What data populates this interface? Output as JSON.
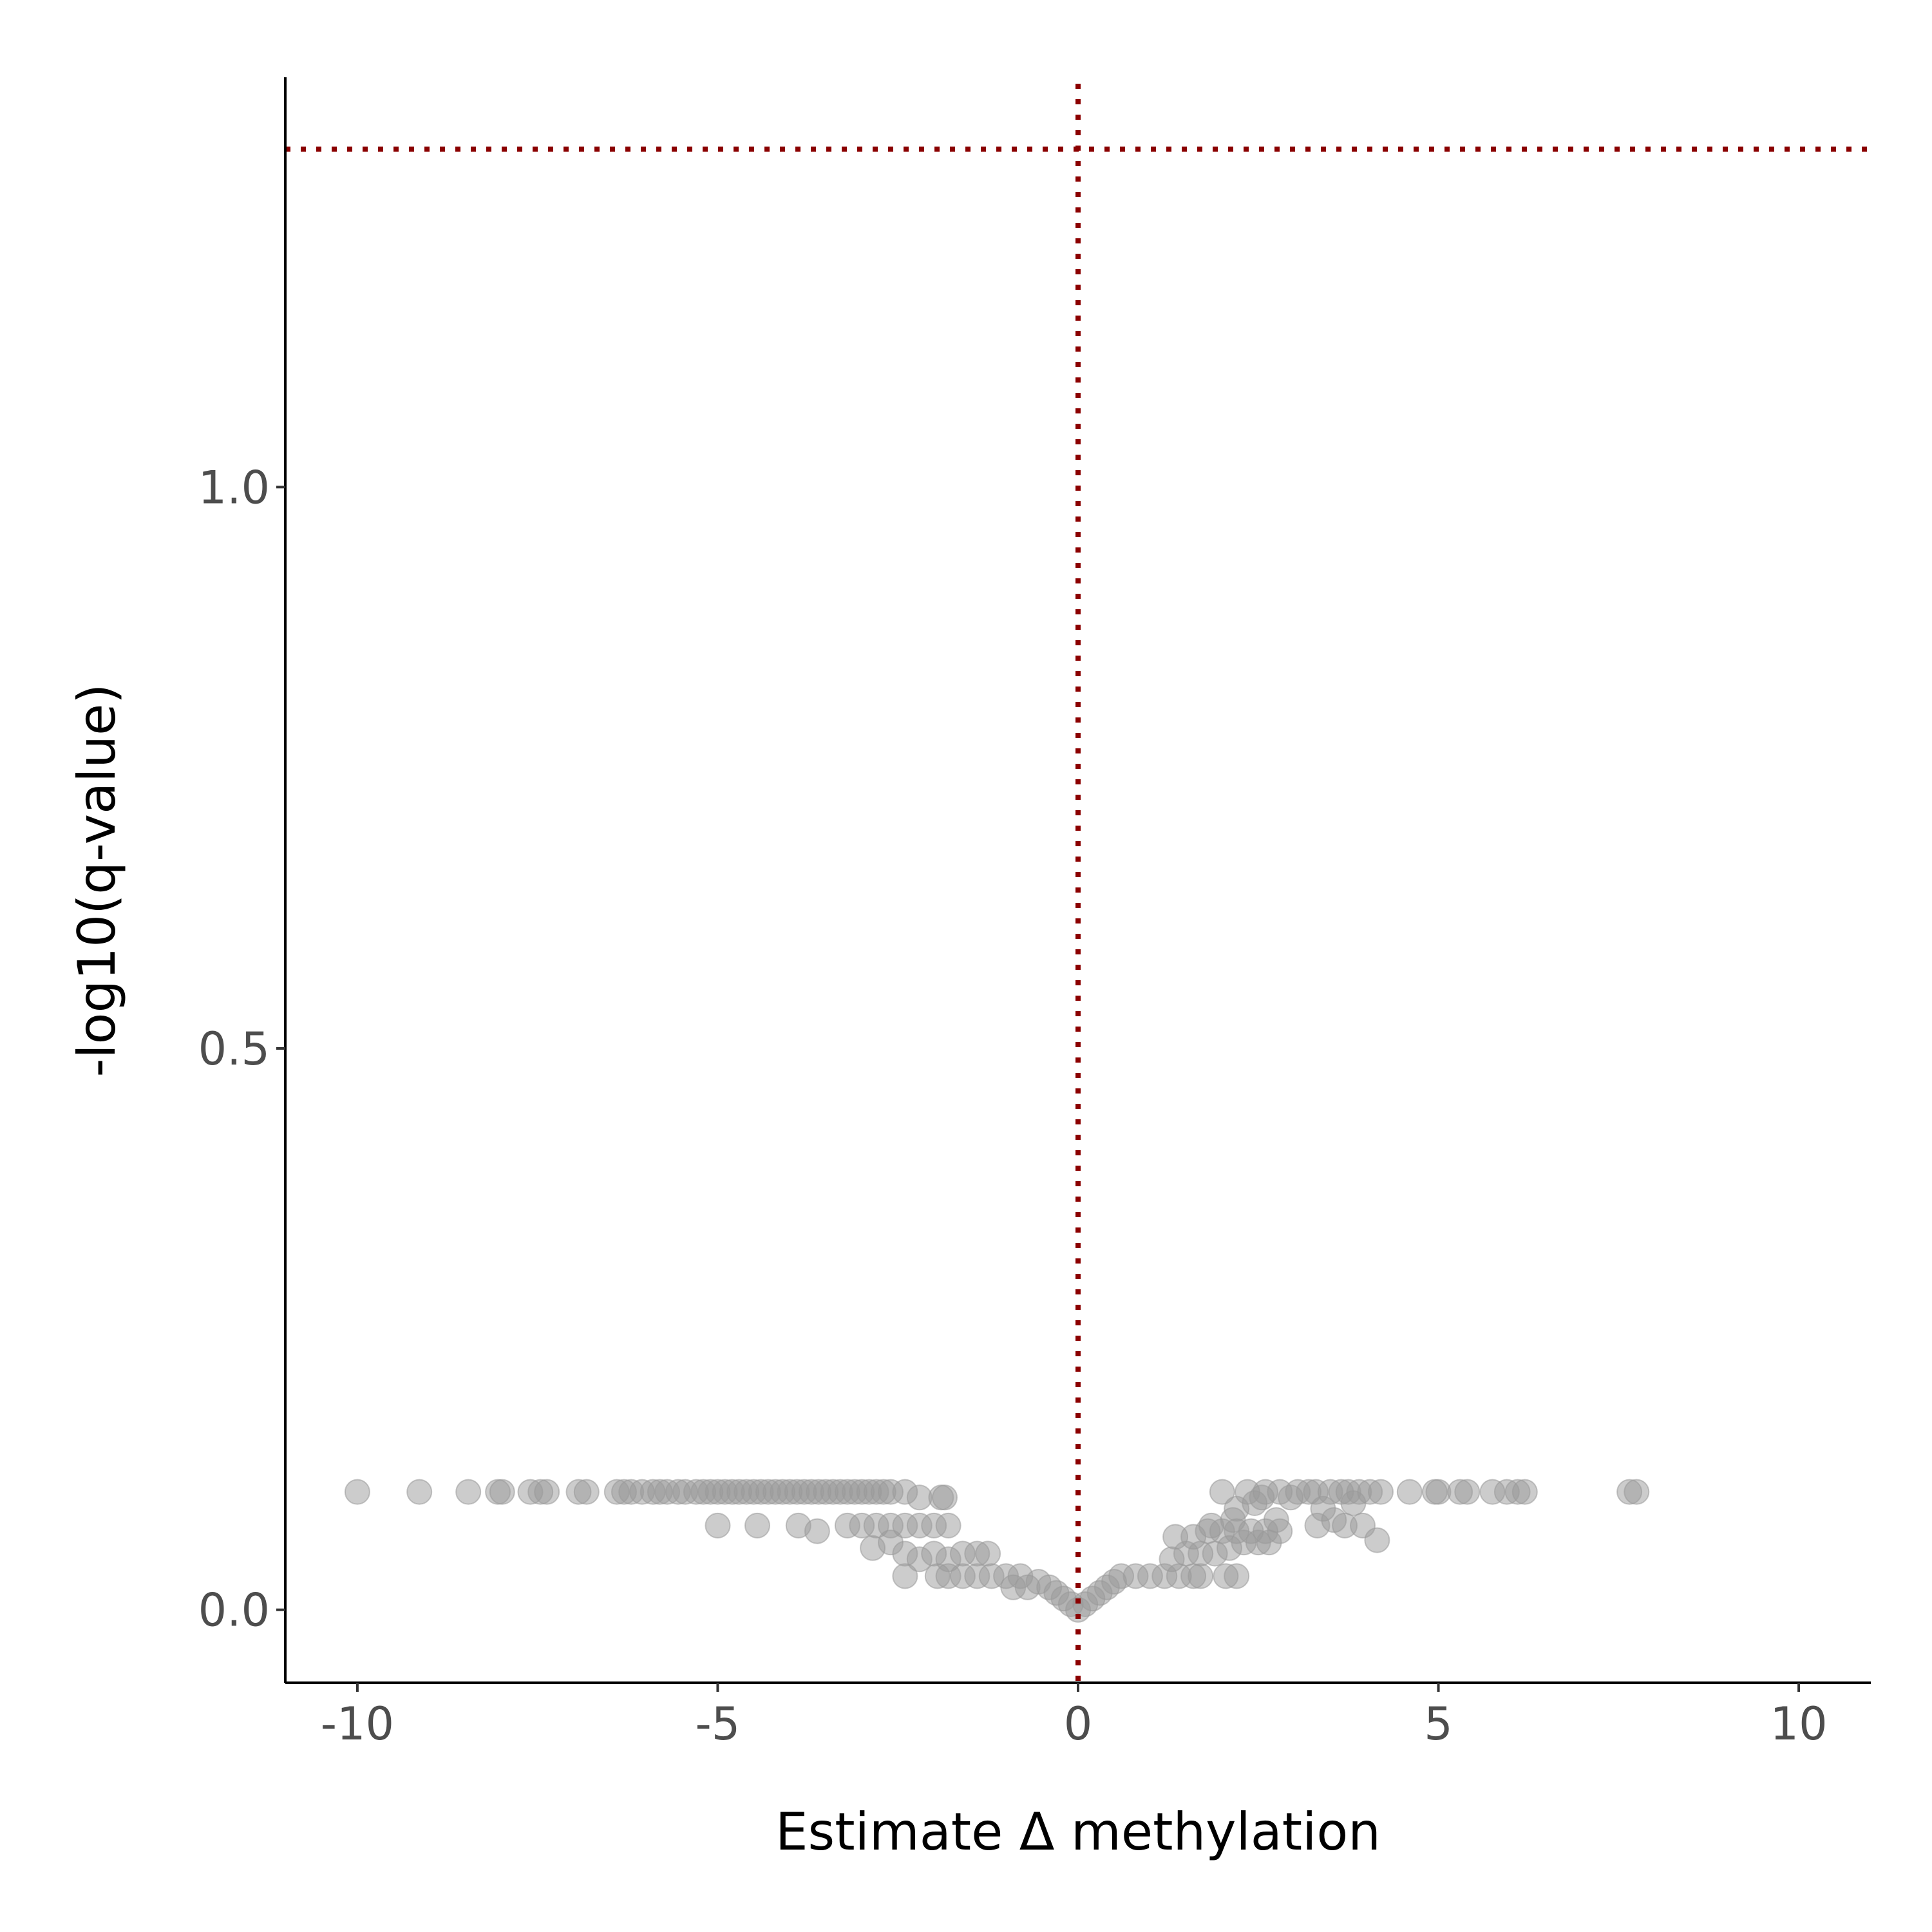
{
  "chart_data": {
    "type": "scatter",
    "title": "",
    "xlabel": "Estimate Δ methylation",
    "ylabel": "-log10(q-value)",
    "xlim": [
      -11,
      11
    ],
    "ylim": [
      -0.065,
      1.365
    ],
    "x_ticks": [
      {
        "value": -10,
        "label": "-10"
      },
      {
        "value": -5,
        "label": "-5"
      },
      {
        "value": 0,
        "label": "0"
      },
      {
        "value": 5,
        "label": "5"
      },
      {
        "value": 10,
        "label": "10"
      }
    ],
    "y_ticks": [
      {
        "value": 0.0,
        "label": "0.0"
      },
      {
        "value": 0.5,
        "label": "0.5"
      },
      {
        "value": 1.0,
        "label": "1.0"
      }
    ],
    "grid": false,
    "legend": "none",
    "reference_lines": [
      {
        "orientation": "horizontal",
        "value": 1.301,
        "style": "dotted",
        "color": "#8b0000"
      },
      {
        "orientation": "vertical",
        "value": 0,
        "style": "dotted",
        "color": "#8b0000"
      }
    ],
    "point_color": "#999999",
    "points": [
      {
        "x": -10.0,
        "y": 0.105
      },
      {
        "x": -9.14,
        "y": 0.105
      },
      {
        "x": -8.46,
        "y": 0.105
      },
      {
        "x": -8.05,
        "y": 0.105
      },
      {
        "x": -7.99,
        "y": 0.105
      },
      {
        "x": -7.6,
        "y": 0.105
      },
      {
        "x": -7.46,
        "y": 0.105
      },
      {
        "x": -7.37,
        "y": 0.105
      },
      {
        "x": -6.93,
        "y": 0.105
      },
      {
        "x": -6.82,
        "y": 0.105
      },
      {
        "x": -6.4,
        "y": 0.105
      },
      {
        "x": -6.3,
        "y": 0.105
      },
      {
        "x": -6.2,
        "y": 0.105
      },
      {
        "x": -6.05,
        "y": 0.105
      },
      {
        "x": -5.9,
        "y": 0.105
      },
      {
        "x": -5.8,
        "y": 0.105
      },
      {
        "x": -5.7,
        "y": 0.105
      },
      {
        "x": -5.55,
        "y": 0.105
      },
      {
        "x": -5.45,
        "y": 0.105
      },
      {
        "x": -5.3,
        "y": 0.105
      },
      {
        "x": -5.2,
        "y": 0.105
      },
      {
        "x": -5.1,
        "y": 0.105
      },
      {
        "x": -5.0,
        "y": 0.105
      },
      {
        "x": -4.9,
        "y": 0.105
      },
      {
        "x": -4.8,
        "y": 0.105
      },
      {
        "x": -4.7,
        "y": 0.105
      },
      {
        "x": -4.6,
        "y": 0.105
      },
      {
        "x": -4.5,
        "y": 0.105
      },
      {
        "x": -4.4,
        "y": 0.105
      },
      {
        "x": -4.3,
        "y": 0.105
      },
      {
        "x": -4.2,
        "y": 0.105
      },
      {
        "x": -4.1,
        "y": 0.105
      },
      {
        "x": -4.0,
        "y": 0.105
      },
      {
        "x": -3.9,
        "y": 0.105
      },
      {
        "x": -3.8,
        "y": 0.105
      },
      {
        "x": -3.7,
        "y": 0.105
      },
      {
        "x": -3.6,
        "y": 0.105
      },
      {
        "x": -3.5,
        "y": 0.105
      },
      {
        "x": -3.4,
        "y": 0.105
      },
      {
        "x": -3.3,
        "y": 0.105
      },
      {
        "x": -3.2,
        "y": 0.105
      },
      {
        "x": -3.1,
        "y": 0.105
      },
      {
        "x": -3.0,
        "y": 0.105
      },
      {
        "x": -2.9,
        "y": 0.105
      },
      {
        "x": -2.8,
        "y": 0.105
      },
      {
        "x": -2.7,
        "y": 0.105
      },
      {
        "x": -2.6,
        "y": 0.105
      },
      {
        "x": -2.4,
        "y": 0.105
      },
      {
        "x": -2.2,
        "y": 0.1
      },
      {
        "x": -1.9,
        "y": 0.1
      },
      {
        "x": -1.85,
        "y": 0.1
      },
      {
        "x": -5.0,
        "y": 0.075
      },
      {
        "x": -4.45,
        "y": 0.075
      },
      {
        "x": -3.88,
        "y": 0.075
      },
      {
        "x": -3.62,
        "y": 0.07
      },
      {
        "x": -3.2,
        "y": 0.075
      },
      {
        "x": -3.0,
        "y": 0.075
      },
      {
        "x": -2.8,
        "y": 0.075
      },
      {
        "x": -2.6,
        "y": 0.075
      },
      {
        "x": -2.4,
        "y": 0.075
      },
      {
        "x": -2.2,
        "y": 0.075
      },
      {
        "x": -2.0,
        "y": 0.075
      },
      {
        "x": -1.8,
        "y": 0.075
      },
      {
        "x": -2.85,
        "y": 0.055
      },
      {
        "x": -2.6,
        "y": 0.06
      },
      {
        "x": -2.4,
        "y": 0.05
      },
      {
        "x": -2.2,
        "y": 0.045
      },
      {
        "x": -2.0,
        "y": 0.05
      },
      {
        "x": -1.8,
        "y": 0.045
      },
      {
        "x": -1.6,
        "y": 0.05
      },
      {
        "x": -1.4,
        "y": 0.05
      },
      {
        "x": -1.25,
        "y": 0.05
      },
      {
        "x": -2.4,
        "y": 0.03
      },
      {
        "x": -1.95,
        "y": 0.03
      },
      {
        "x": -1.8,
        "y": 0.03
      },
      {
        "x": -1.6,
        "y": 0.03
      },
      {
        "x": -1.4,
        "y": 0.03
      },
      {
        "x": -1.2,
        "y": 0.03
      },
      {
        "x": -1.0,
        "y": 0.03
      },
      {
        "x": -0.8,
        "y": 0.03
      },
      {
        "x": -0.9,
        "y": 0.02
      },
      {
        "x": -0.7,
        "y": 0.02
      },
      {
        "x": -0.55,
        "y": 0.025
      },
      {
        "x": -0.4,
        "y": 0.02
      },
      {
        "x": -0.3,
        "y": 0.015
      },
      {
        "x": -0.2,
        "y": 0.01
      },
      {
        "x": -0.1,
        "y": 0.005
      },
      {
        "x": 0.0,
        "y": 0.0
      },
      {
        "x": 0.1,
        "y": 0.005
      },
      {
        "x": 0.2,
        "y": 0.01
      },
      {
        "x": 0.3,
        "y": 0.015
      },
      {
        "x": 0.4,
        "y": 0.02
      },
      {
        "x": 0.5,
        "y": 0.025
      },
      {
        "x": 0.6,
        "y": 0.03
      },
      {
        "x": 0.8,
        "y": 0.03
      },
      {
        "x": 1.0,
        "y": 0.03
      },
      {
        "x": 1.2,
        "y": 0.03
      },
      {
        "x": 1.4,
        "y": 0.03
      },
      {
        "x": 1.6,
        "y": 0.03
      },
      {
        "x": 1.7,
        "y": 0.03
      },
      {
        "x": 2.05,
        "y": 0.03
      },
      {
        "x": 2.2,
        "y": 0.03
      },
      {
        "x": 1.3,
        "y": 0.045
      },
      {
        "x": 1.5,
        "y": 0.05
      },
      {
        "x": 1.7,
        "y": 0.05
      },
      {
        "x": 1.9,
        "y": 0.05
      },
      {
        "x": 2.1,
        "y": 0.055
      },
      {
        "x": 2.3,
        "y": 0.06
      },
      {
        "x": 2.5,
        "y": 0.06
      },
      {
        "x": 2.65,
        "y": 0.06
      },
      {
        "x": 1.35,
        "y": 0.065
      },
      {
        "x": 1.6,
        "y": 0.065
      },
      {
        "x": 1.8,
        "y": 0.07
      },
      {
        "x": 2.0,
        "y": 0.07
      },
      {
        "x": 2.2,
        "y": 0.07
      },
      {
        "x": 2.4,
        "y": 0.07
      },
      {
        "x": 2.6,
        "y": 0.07
      },
      {
        "x": 2.8,
        "y": 0.07
      },
      {
        "x": 1.85,
        "y": 0.075
      },
      {
        "x": 2.15,
        "y": 0.08
      },
      {
        "x": 2.75,
        "y": 0.08
      },
      {
        "x": 3.32,
        "y": 0.075
      },
      {
        "x": 3.55,
        "y": 0.08
      },
      {
        "x": 3.7,
        "y": 0.075
      },
      {
        "x": 3.95,
        "y": 0.075
      },
      {
        "x": 4.15,
        "y": 0.062
      },
      {
        "x": 2.2,
        "y": 0.09
      },
      {
        "x": 2.45,
        "y": 0.095
      },
      {
        "x": 3.4,
        "y": 0.09
      },
      {
        "x": 3.82,
        "y": 0.095
      },
      {
        "x": 2.0,
        "y": 0.105
      },
      {
        "x": 2.35,
        "y": 0.105
      },
      {
        "x": 2.55,
        "y": 0.1
      },
      {
        "x": 2.6,
        "y": 0.105
      },
      {
        "x": 2.8,
        "y": 0.105
      },
      {
        "x": 2.95,
        "y": 0.1
      },
      {
        "x": 3.05,
        "y": 0.105
      },
      {
        "x": 3.2,
        "y": 0.105
      },
      {
        "x": 3.3,
        "y": 0.105
      },
      {
        "x": 3.5,
        "y": 0.105
      },
      {
        "x": 3.65,
        "y": 0.105
      },
      {
        "x": 3.75,
        "y": 0.105
      },
      {
        "x": 3.9,
        "y": 0.105
      },
      {
        "x": 4.05,
        "y": 0.105
      },
      {
        "x": 4.2,
        "y": 0.105
      },
      {
        "x": 4.6,
        "y": 0.105
      },
      {
        "x": 4.95,
        "y": 0.105
      },
      {
        "x": 5.0,
        "y": 0.105
      },
      {
        "x": 5.3,
        "y": 0.105
      },
      {
        "x": 5.4,
        "y": 0.105
      },
      {
        "x": 5.75,
        "y": 0.105
      },
      {
        "x": 5.95,
        "y": 0.105
      },
      {
        "x": 6.1,
        "y": 0.105
      },
      {
        "x": 6.2,
        "y": 0.105
      },
      {
        "x": 7.65,
        "y": 0.105
      },
      {
        "x": 7.75,
        "y": 0.105
      }
    ]
  }
}
